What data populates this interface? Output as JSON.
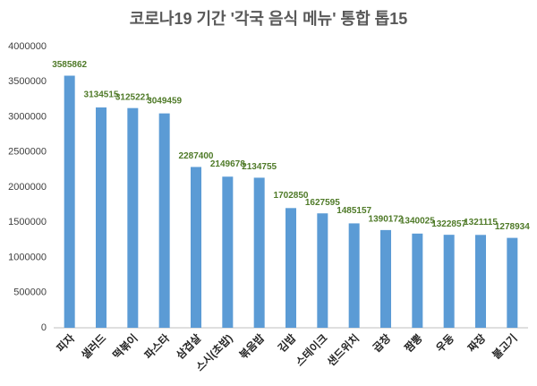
{
  "chart_data": {
    "type": "bar",
    "title": "코로나19 기간 '각국 음식 메뉴' 통합 톱15",
    "categories": [
      "피자",
      "샐러드",
      "떡볶이",
      "파스타",
      "삼겹살",
      "스시(초밥)",
      "볶음밥",
      "김밥",
      "스테이크",
      "샌드위치",
      "곱창",
      "짬뽕",
      "우동",
      "짜장",
      "불고기"
    ],
    "values": [
      3585862,
      3134515,
      3125221,
      3049459,
      2287400,
      2149678,
      2134755,
      1702850,
      1627595,
      1485157,
      1390172,
      1340025,
      1322857,
      1321115,
      1278934
    ],
    "color": "#5b9bd5",
    "label_color": "#4f7a28",
    "ylim": [
      0,
      4000000
    ],
    "yticks": [
      0,
      500000,
      1000000,
      1500000,
      2000000,
      2500000,
      3000000,
      3500000,
      4000000
    ],
    "grid": false
  }
}
